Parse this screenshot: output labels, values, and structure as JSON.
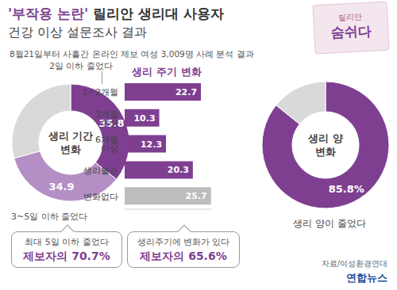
{
  "chart_data": [
    {
      "type": "pie",
      "title": [
        "생리 기간",
        "변화"
      ],
      "categories": [
        "2일 이하 줄었다",
        "3~5일 이하 줄었다",
        null
      ],
      "values": [
        35.8,
        34.9,
        29.3
      ],
      "colors": [
        "#7e3f91",
        "#b48fc6",
        "#d9d9d9"
      ],
      "data_labels": true,
      "value_labels": [
        "35.8",
        "34.9",
        null
      ],
      "annotation": [
        "최대 5일 이하 줄었다",
        "제보자의 70.7%"
      ]
    },
    {
      "type": "bar",
      "orientation": "horizontal",
      "title": "생리 주기 변화",
      "categories": [
        "1~2개월",
        "3개월 이상",
        "6개월 이상",
        "생리불순",
        "변화없다"
      ],
      "values": [
        22.7,
        10.3,
        12.3,
        20.3,
        25.7
      ],
      "colors": [
        "#7e3f91",
        "#7e3f91",
        "#7e3f91",
        "#7e3f91",
        "#bdbdbd"
      ],
      "xlim": [
        0,
        26
      ],
      "tick_labels": "y",
      "data_labels": true,
      "annotation": [
        "생리주기에 변화가 있다",
        "제보자의 65.6%"
      ]
    },
    {
      "type": "pie",
      "title": [
        "생리 양",
        "변화"
      ],
      "categories": [
        "생리 양이 줄었다",
        null
      ],
      "values": [
        85.8,
        14.2
      ],
      "colors": [
        "#7e3f91",
        "#d9d9d9"
      ],
      "data_labels": true,
      "value_labels": [
        "85.8%",
        null
      ]
    }
  ],
  "header": {
    "title_highlight": "'부작용 논란'",
    "title": "릴리안 생리대 사용자",
    "subtitle": "건강 이상 설문조사 결과",
    "note": "8월21일부터 사흘간 온라인 제보 여성 3,009명 사례 분석 결과"
  },
  "product": {
    "brand": "릴리안",
    "name": "숨쉬다"
  },
  "source": "자료/여성환경연대",
  "credit": "연합뉴스"
}
